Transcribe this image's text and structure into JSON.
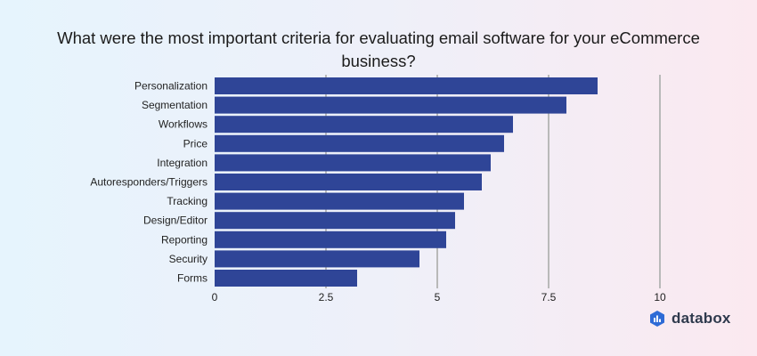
{
  "chart_data": {
    "type": "bar",
    "orientation": "horizontal",
    "title": "What were the most important criteria for evaluating email software for your eCommerce business?",
    "categories": [
      "Personalization",
      "Segmentation",
      "Workflows",
      "Price",
      "Integration",
      "Autoresponders/Triggers",
      "Tracking",
      "Design/Editor",
      "Reporting",
      "Security",
      "Forms"
    ],
    "values": [
      8.6,
      7.9,
      6.7,
      6.5,
      6.2,
      6.0,
      5.6,
      5.4,
      5.2,
      4.6,
      3.2
    ],
    "xlim": [
      0,
      10
    ],
    "x_ticks": [
      "0",
      "2.5",
      "5",
      "7.5",
      "10"
    ],
    "x_tick_values": [
      0,
      2.5,
      5,
      7.5,
      10
    ],
    "xlabel": "",
    "ylabel": "",
    "grid": true,
    "bar_color": "#2f4597",
    "grid_color": "#b9b9b9"
  },
  "brand": {
    "name": "databox",
    "icon": "databox-logo-icon",
    "color": "#2f3a4d",
    "icon_color": "#2e6bd6"
  }
}
